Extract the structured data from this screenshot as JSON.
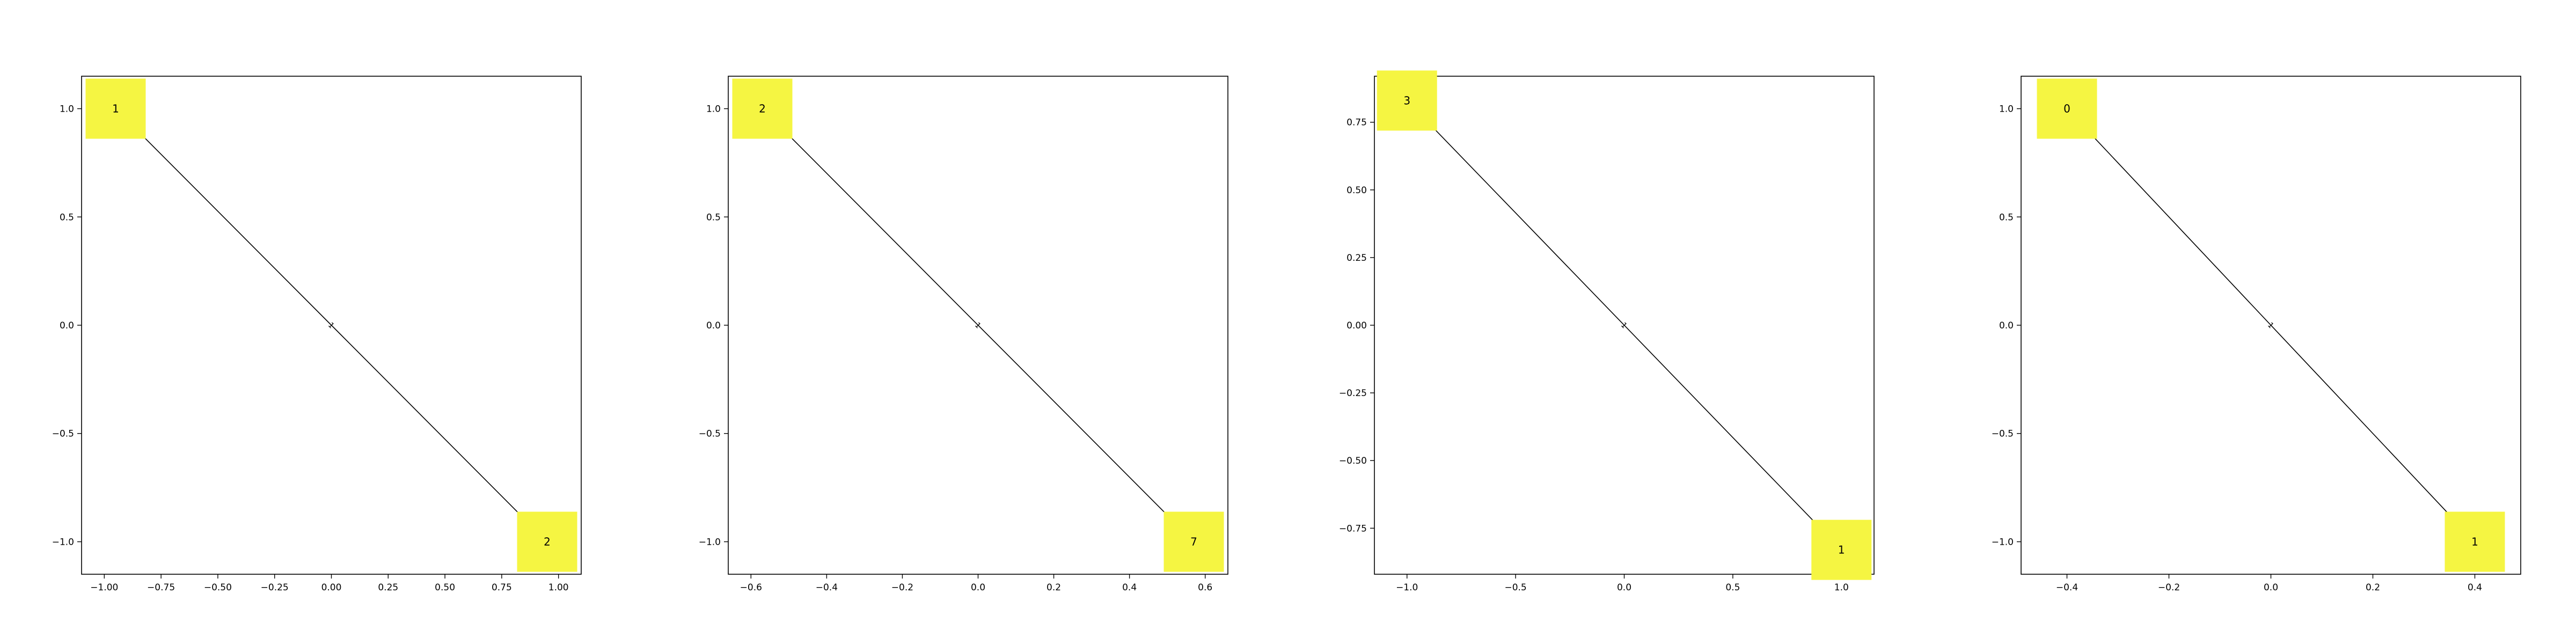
{
  "node_color": "#f5f542",
  "edge_color": "#000000",
  "chart_data": [
    {
      "type": "network",
      "xlim": [
        -1.1,
        1.1
      ],
      "ylim": [
        -1.15,
        1.15
      ],
      "xticks": [
        -1.0,
        -0.75,
        -0.5,
        -0.25,
        0.0,
        0.25,
        0.5,
        0.75,
        1.0
      ],
      "xtick_labels": [
        "−1.00",
        "−0.75",
        "−0.50",
        "−0.25",
        "0.00",
        "0.25",
        "0.50",
        "0.75",
        "1.00"
      ],
      "yticks": [
        -1.0,
        -0.5,
        0.0,
        0.5,
        1.0
      ],
      "ytick_labels": [
        "−1.0",
        "−0.5",
        "0.0",
        "0.5",
        "1.0"
      ],
      "nodes": [
        {
          "label": "1",
          "x": -0.95,
          "y": 1.0
        },
        {
          "label": "2",
          "x": 0.95,
          "y": -1.0
        }
      ],
      "edges": [
        {
          "source": 0,
          "target": 1,
          "label": "1"
        }
      ]
    },
    {
      "type": "network",
      "xlim": [
        -0.66,
        0.66
      ],
      "ylim": [
        -1.15,
        1.15
      ],
      "xticks": [
        -0.6,
        -0.4,
        -0.2,
        0.0,
        0.2,
        0.4,
        0.6
      ],
      "xtick_labels": [
        "−0.6",
        "−0.4",
        "−0.2",
        "0.0",
        "0.2",
        "0.4",
        "0.6"
      ],
      "yticks": [
        -1.0,
        -0.5,
        0.0,
        0.5,
        1.0
      ],
      "ytick_labels": [
        "−1.0",
        "−0.5",
        "0.0",
        "0.5",
        "1.0"
      ],
      "nodes": [
        {
          "label": "2",
          "x": -0.57,
          "y": 1.0
        },
        {
          "label": "7",
          "x": 0.57,
          "y": -1.0
        }
      ],
      "edges": [
        {
          "source": 0,
          "target": 1,
          "label": "1"
        }
      ]
    },
    {
      "type": "network",
      "xlim": [
        -1.15,
        1.15
      ],
      "ylim": [
        -0.92,
        0.92
      ],
      "xticks": [
        -1.0,
        -0.5,
        0.0,
        0.5,
        1.0
      ],
      "xtick_labels": [
        "−1.0",
        "−0.5",
        "0.0",
        "0.5",
        "1.0"
      ],
      "yticks": [
        -0.75,
        -0.5,
        -0.25,
        0.0,
        0.25,
        0.5,
        0.75
      ],
      "ytick_labels": [
        "−0.75",
        "−0.50",
        "−0.25",
        "0.00",
        "0.25",
        "0.50",
        "0.75"
      ],
      "nodes": [
        {
          "label": "3",
          "x": -1.0,
          "y": 0.83
        },
        {
          "label": "1",
          "x": 1.0,
          "y": -0.83
        }
      ],
      "edges": [
        {
          "source": 0,
          "target": 1,
          "label": "1"
        }
      ]
    },
    {
      "type": "network",
      "xlim": [
        -0.49,
        0.49
      ],
      "ylim": [
        -1.15,
        1.15
      ],
      "xticks": [
        -0.4,
        -0.2,
        0.0,
        0.2,
        0.4
      ],
      "xtick_labels": [
        "−0.4",
        "−0.2",
        "0.0",
        "0.2",
        "0.4"
      ],
      "yticks": [
        -1.0,
        -0.5,
        0.0,
        0.5,
        1.0
      ],
      "ytick_labels": [
        "−1.0",
        "−0.5",
        "0.0",
        "0.5",
        "1.0"
      ],
      "nodes": [
        {
          "label": "0",
          "x": -0.4,
          "y": 1.0
        },
        {
          "label": "1",
          "x": 0.4,
          "y": -1.0
        }
      ],
      "edges": [
        {
          "source": 0,
          "target": 1,
          "label": "1"
        }
      ]
    }
  ]
}
